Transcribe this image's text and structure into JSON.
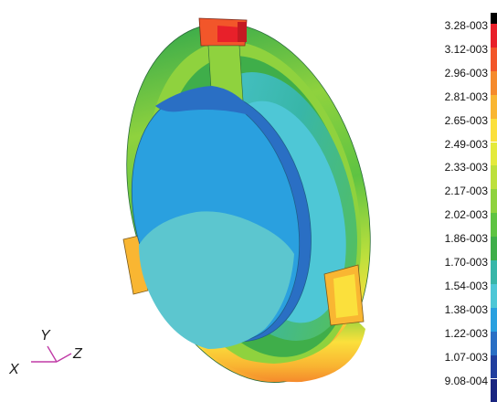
{
  "legend": {
    "labels": [
      "3.28-003",
      "3.12-003",
      "2.96-003",
      "2.81-003",
      "2.65-003",
      "2.49-003",
      "2.33-003",
      "2.17-003",
      "2.02-003",
      "1.86-003",
      "1.70-003",
      "1.54-003",
      "1.38-003",
      "1.22-003",
      "1.07-003",
      "9.08-004"
    ],
    "colors": [
      "#000000",
      "#e8202a",
      "#f2562a",
      "#f58a2c",
      "#f9b632",
      "#fbe03c",
      "#e4ea3c",
      "#bde03c",
      "#8fd23e",
      "#5ec342",
      "#3fae4a",
      "#38b6a8",
      "#4ec7d6",
      "#2aa0df",
      "#2a6fc4",
      "#213f9e",
      "#1a2680"
    ]
  },
  "axes": {
    "x": "X",
    "y": "Y",
    "z": "Z"
  },
  "colors": {
    "outer_rim": "#44b349",
    "hot": "#e8202a",
    "warm": "#f5a02c",
    "disk_face": "#2aa0df",
    "disk_lower": "#5cc6cf",
    "edge": "#1f5f8a",
    "triad": "#c03aa6"
  }
}
